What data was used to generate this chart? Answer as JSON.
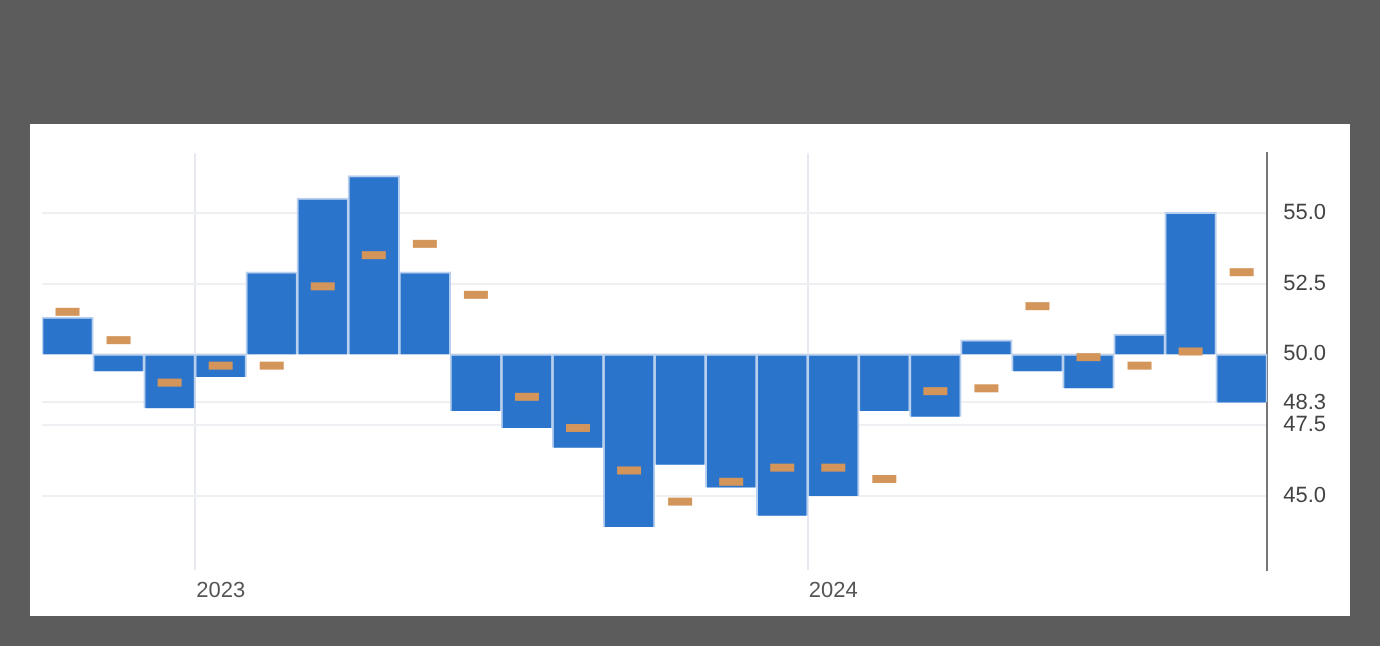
{
  "chart_data": {
    "type": "bar",
    "categories": [
      null,
      null,
      null,
      "2023",
      null,
      null,
      null,
      null,
      null,
      null,
      null,
      null,
      null,
      null,
      null,
      "2024",
      null,
      null,
      null,
      null,
      null,
      null,
      null,
      null
    ],
    "series": [
      {
        "color": "#2a74cc",
        "base": [
          50,
          50,
          50,
          50,
          50,
          50,
          50,
          50,
          50,
          50,
          50,
          50,
          50,
          50,
          50,
          50,
          50,
          50,
          50,
          50,
          50,
          50,
          50,
          50
        ],
        "values": [
          1.3,
          -0.6,
          -1.9,
          -0.8,
          2.9,
          5.5,
          6.3,
          2.9,
          -2.0,
          -2.6,
          -3.3,
          -6.1,
          -3.9,
          -4.7,
          -5.7,
          -5.0,
          -2.0,
          -2.2,
          0.5,
          -0.6,
          -1.2,
          0.7,
          5.0,
          -1.7
        ]
      },
      {
        "type": "scatter",
        "color": "#d4955a",
        "values": [
          51.5,
          50.5,
          49.0,
          49.6,
          49.6,
          52.4,
          53.5,
          53.9,
          52.1,
          48.5,
          47.4,
          45.9,
          44.8,
          45.5,
          46.0,
          46.0,
          45.6,
          48.7,
          48.8,
          51.7,
          49.9,
          49.6,
          50.1,
          52.9
        ]
      }
    ],
    "ylim": [
      42.4,
      57.1
    ],
    "yticks": [
      {
        "value": 45,
        "label": "45.0"
      },
      {
        "value": 47.5,
        "label": "47.5"
      },
      48.3,
      {
        "value": 50,
        "label": "50.0"
      },
      {
        "value": 52.5,
        "label": "52.5"
      },
      {
        "value": 55,
        "label": "55.0"
      }
    ],
    "grid": true,
    "legend": false
  }
}
